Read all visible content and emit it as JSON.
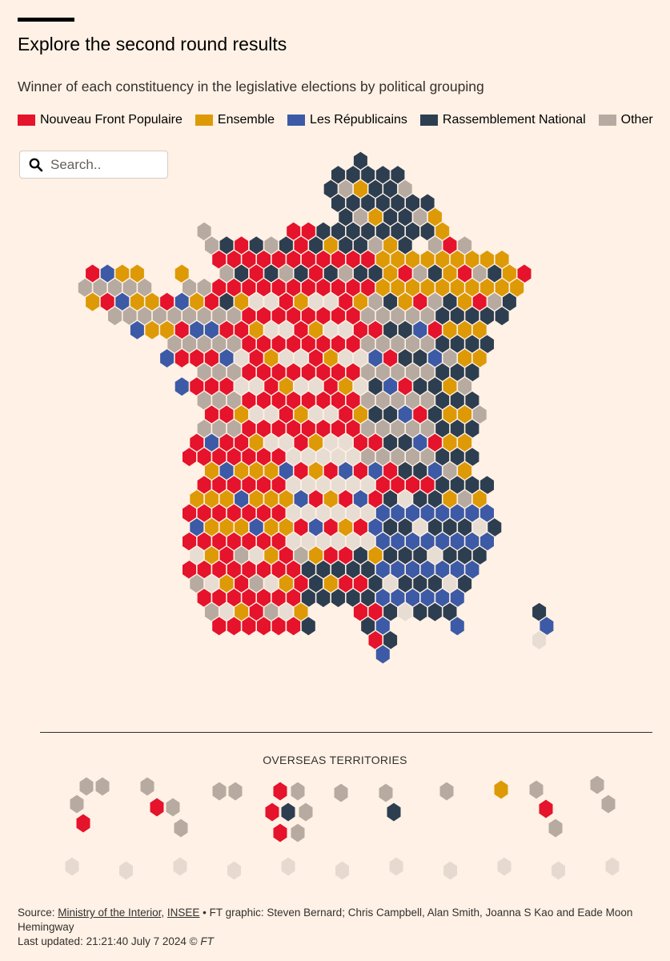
{
  "header": {
    "title": "Explore the second round results",
    "subtitle": "Winner of each constituency in the legislative elections by political grouping"
  },
  "legend": [
    {
      "key": "nfp",
      "label": "Nouveau Front Populaire",
      "color": "#e5132b"
    },
    {
      "key": "ens",
      "label": "Ensemble",
      "color": "#dd9a06"
    },
    {
      "key": "lr",
      "label": "Les Républicains",
      "color": "#3c5aa6"
    },
    {
      "key": "rn",
      "label": "Rassemblement National",
      "color": "#2d3e50"
    },
    {
      "key": "oth",
      "label": "Other",
      "color": "#b7aba1"
    }
  ],
  "colors": {
    "background": "#fff1e5",
    "pending": "#e8ddd3",
    "pending_overseas": "#e6dad0",
    "tile_border": "#fff1e5",
    "region_border": "#ffffff"
  },
  "search": {
    "placeholder": "Search.."
  },
  "overseas": {
    "title": "OVERSEAS TERRITORIES"
  },
  "footer": {
    "source_label": "Source: ",
    "source_link1": "Ministry of the Interior",
    "source_sep": ", ",
    "source_link2": "INSEE",
    "credits": " • FT graphic: Steven Bernard; Chris Campbell, Alan Smith, Joanna S Kao and Eade Moon Hemingway",
    "updated": "Last updated: 21:21:40 July 7 2024 © ",
    "ft": "FT"
  }
}
